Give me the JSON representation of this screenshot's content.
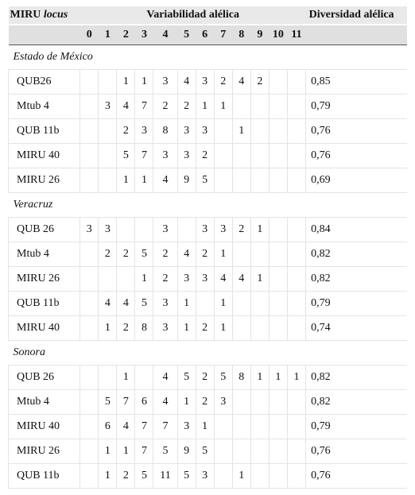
{
  "header": {
    "miru_label": "MIRU",
    "miru_italic": "locus",
    "variability": "Variabilidad alélica",
    "diversity": "Diversidad alélica",
    "alleles": [
      "0",
      "1",
      "2",
      "3",
      "4",
      "5",
      "6",
      "7",
      "8",
      "9",
      "10",
      "11"
    ]
  },
  "sections": [
    {
      "name": "Estado de México",
      "rows": [
        {
          "locus": "QUB26",
          "counts": [
            "",
            "",
            "1",
            "1",
            "3",
            "4",
            "3",
            "2",
            "4",
            "2",
            "",
            ""
          ],
          "diversity": "0,85"
        },
        {
          "locus": "Mtub 4",
          "counts": [
            "",
            "3",
            "4",
            "7",
            "2",
            "2",
            "1",
            "1",
            "",
            "",
            "",
            ""
          ],
          "diversity": "0,79"
        },
        {
          "locus": "QUB 11b",
          "counts": [
            "",
            "",
            "2",
            "3",
            "8",
            "3",
            "3",
            "",
            "1",
            "",
            "",
            ""
          ],
          "diversity": "0,76"
        },
        {
          "locus": "MIRU 40",
          "counts": [
            "",
            "",
            "5",
            "7",
            "3",
            "3",
            "2",
            "",
            "",
            "",
            "",
            ""
          ],
          "diversity": "0,76"
        },
        {
          "locus": "MIRU 26",
          "counts": [
            "",
            "",
            "1",
            "1",
            "4",
            "9",
            "5",
            "",
            "",
            "",
            "",
            ""
          ],
          "diversity": "0,69"
        }
      ]
    },
    {
      "name": "Veracruz",
      "rows": [
        {
          "locus": "QUB 26",
          "counts": [
            "3",
            "3",
            "",
            "",
            "3",
            "",
            "3",
            "3",
            "2",
            "1",
            "",
            ""
          ],
          "diversity": "0,84"
        },
        {
          "locus": "Mtub 4",
          "counts": [
            "",
            "2",
            "2",
            "5",
            "2",
            "4",
            "2",
            "1",
            "",
            "",
            "",
            ""
          ],
          "diversity": "0,82"
        },
        {
          "locus": "MIRU 26",
          "counts": [
            "",
            "",
            "",
            "1",
            "2",
            "3",
            "3",
            "4",
            "4",
            "1",
            "",
            ""
          ],
          "diversity": "0,82"
        },
        {
          "locus": "QUB 11b",
          "counts": [
            "",
            "4",
            "4",
            "5",
            "3",
            "1",
            "",
            "1",
            "",
            "",
            "",
            ""
          ],
          "diversity": "0,79"
        },
        {
          "locus": "MIRU 40",
          "counts": [
            "",
            "1",
            "2",
            "8",
            "3",
            "1",
            "2",
            "1",
            "",
            "",
            "",
            ""
          ],
          "diversity": "0,74"
        }
      ]
    },
    {
      "name": "Sonora",
      "rows": [
        {
          "locus": "QUB 26",
          "counts": [
            "",
            "",
            "1",
            "",
            "4",
            "5",
            "2",
            "5",
            "8",
            "1",
            "1",
            "1"
          ],
          "diversity": "0,82"
        },
        {
          "locus": "Mtub 4",
          "counts": [
            "",
            "5",
            "7",
            "6",
            "4",
            "1",
            "2",
            "3",
            "",
            "",
            "",
            ""
          ],
          "diversity": "0,82"
        },
        {
          "locus": "MIRU 40",
          "counts": [
            "",
            "6",
            "4",
            "7",
            "7",
            "3",
            "1",
            "",
            "",
            "",
            "",
            ""
          ],
          "diversity": "0,79"
        },
        {
          "locus": "MIRU 26",
          "counts": [
            "",
            "1",
            "1",
            "7",
            "5",
            "9",
            "5",
            "",
            "",
            "",
            "",
            ""
          ],
          "diversity": "0,76"
        },
        {
          "locus": "QUB 11b",
          "counts": [
            "",
            "1",
            "2",
            "5",
            "11",
            "5",
            "3",
            "",
            "1",
            "",
            "",
            ""
          ],
          "diversity": "0,76"
        }
      ]
    }
  ]
}
